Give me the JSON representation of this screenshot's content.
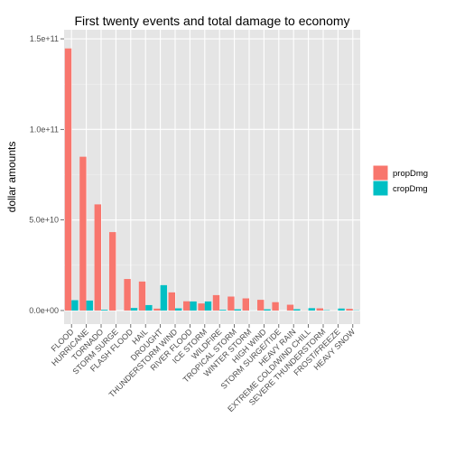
{
  "chart_data": {
    "type": "bar",
    "title": "First twenty events and total damage to economy",
    "xlabel": "",
    "ylabel": "dollar amounts",
    "ylim": [
      -7500000000,
      155000000000
    ],
    "yticks": [
      {
        "value": 0,
        "label": "0.0e+00"
      },
      {
        "value": 50000000000,
        "label": "5.0e+10"
      },
      {
        "value": 100000000000,
        "label": "1.0e+11"
      },
      {
        "value": 150000000000,
        "label": "1.5e+11"
      }
    ],
    "grid": true,
    "legend_position": "right",
    "categories": [
      "FLOOD",
      "HURRICANE",
      "TORNADO",
      "STORM SURGE",
      "FLASH FLOOD",
      "HAIL",
      "DROUGHT",
      "THUNDERSTORM WIND",
      "RIVER FLOOD",
      "ICE STORM",
      "WILDFIRE",
      "TROPICAL STORM",
      "WINTER STORM",
      "HIGH WIND",
      "STORM SURGE/TIDE",
      "HEAVY RAIN",
      "EXTREME COLD/WIND CHILL",
      "SEVERE THUNDERSTORM",
      "FROST/FREEZE",
      "HEAVY SNOW"
    ],
    "series": [
      {
        "name": "propDmg",
        "color": "#F8766D",
        "values": [
          144700000000,
          84900000000,
          58600000000,
          43300000000,
          17400000000,
          16000000000,
          1050000000,
          10000000000,
          5100000000,
          3900000000,
          8500000000,
          7700000000,
          6700000000,
          5900000000,
          4600000000,
          3200000000,
          70000000,
          1200000000,
          30000000,
          930000000
        ]
      },
      {
        "name": "cropDmg",
        "color": "#00BFC4",
        "values": [
          5700000000,
          5500000000,
          420000000,
          5000,
          1400000000,
          3000000000,
          14000000000,
          1200000000,
          5000000000,
          5000000000,
          400000000,
          680000000,
          30000000,
          680000000,
          850000,
          730000000,
          1300000000,
          190000000,
          1100000000,
          130000000
        ]
      }
    ]
  }
}
